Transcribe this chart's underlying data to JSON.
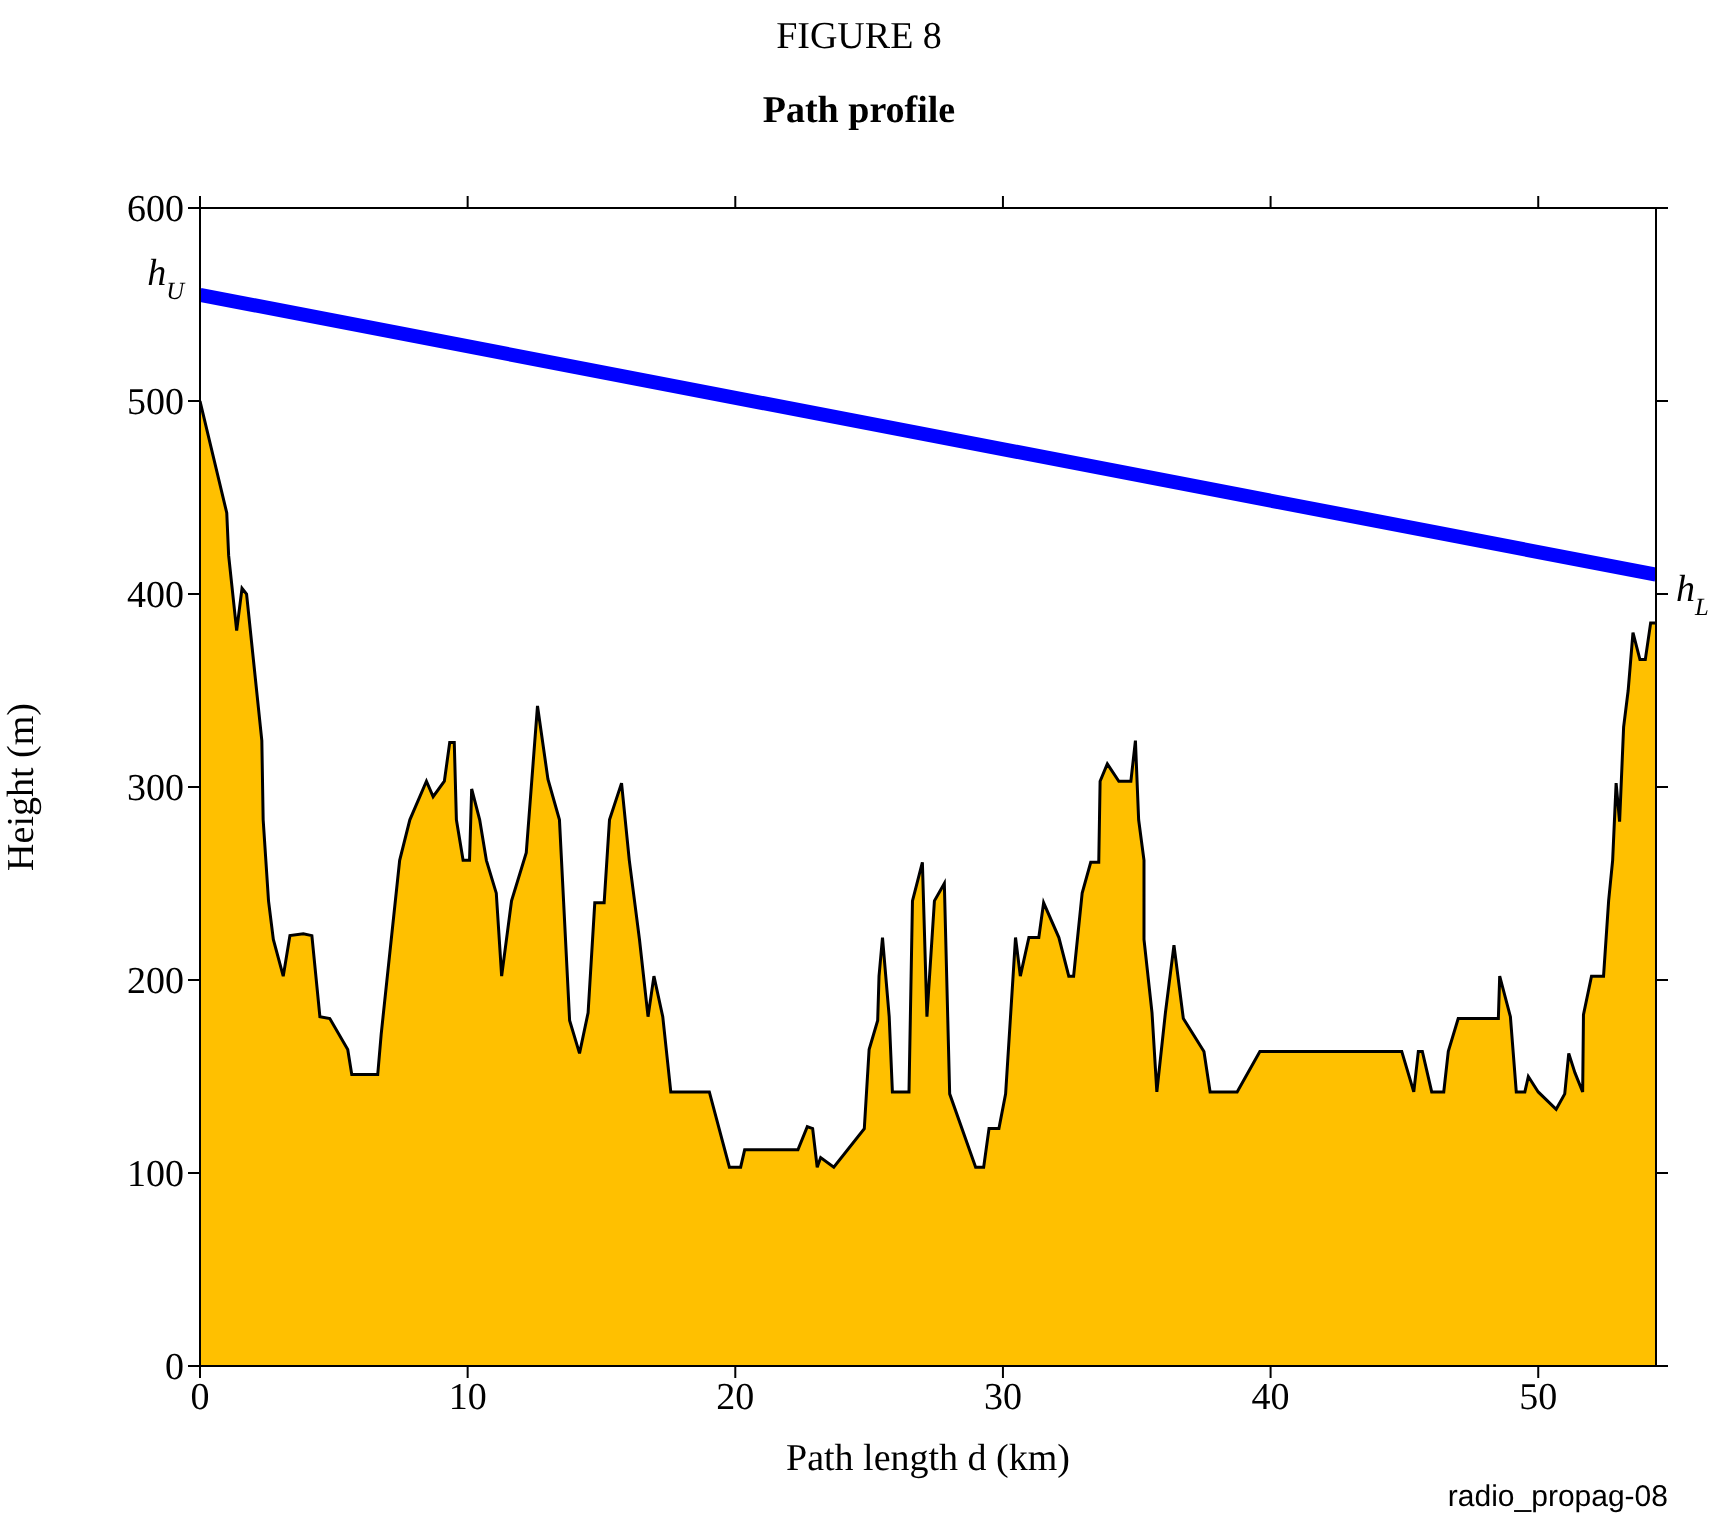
{
  "chart_data": {
    "type": "area",
    "title": "FIGURE 8",
    "subtitle": "Path profile",
    "xlabel": "Path length d (km)",
    "ylabel": "Height (m)",
    "xlim": [
      0,
      54.4
    ],
    "xticks": [
      0,
      10,
      20,
      30,
      40,
      50
    ],
    "ylim": [
      0,
      600
    ],
    "yticks": [
      0,
      100,
      200,
      300,
      400,
      500,
      600
    ],
    "annotations": [
      {
        "text": "h$_{U}$",
        "x": 0,
        "y": 555
      },
      {
        "text": "h$_{L}$",
        "x": 54.4,
        "y": 410
      },
      "radio_propag-08"
    ],
    "series": [
      {
        "color": "#ffc000",
        "x": [
          0,
          1.0,
          1.07,
          1.37,
          1.57,
          1.74,
          2.31,
          2.36,
          2.56,
          2.74,
          3.11,
          3.36,
          3.86,
          4.18,
          4.48,
          4.85,
          5.52,
          5.67,
          6.64,
          6.77,
          7.46,
          7.84,
          8.46,
          8.71,
          9.13,
          9.33,
          9.5,
          9.58,
          9.83,
          10.07,
          10.15,
          10.45,
          10.7,
          11.07,
          11.27,
          11.64,
          12.19,
          12.61,
          13.0,
          13.43,
          13.81,
          14.18,
          14.5,
          14.75,
          15.1,
          15.3,
          15.75,
          16.04,
          16.42,
          16.74,
          16.96,
          17.29,
          17.59,
          18.28,
          19.03,
          19.78,
          20.2,
          20.35,
          22.34,
          22.69,
          22.89,
          23.06,
          23.19,
          23.68,
          24.82,
          25.0,
          25.32,
          25.37,
          25.5,
          25.75,
          25.87,
          26.49,
          26.62,
          26.99,
          27.16,
          27.44,
          27.81,
          28.01,
          28.98,
          29.28,
          29.48,
          29.85,
          30.1,
          30.47,
          30.65,
          30.97,
          31.34,
          31.52,
          32.09,
          32.46,
          32.64,
          32.96,
          33.28,
          33.58,
          33.63,
          33.9,
          34.33,
          34.78,
          34.95,
          35.07,
          35.27,
          35.27,
          35.57,
          35.75,
          36.07,
          36.39,
          36.74,
          37.51,
          37.74,
          38.75,
          39.6,
          44.9,
          45.35,
          45.52,
          45.67,
          46.02,
          46.47,
          46.64,
          47.01,
          48.51,
          48.56,
          48.96,
          49.18,
          49.5,
          49.63,
          50.0,
          50.67,
          50.99,
          51.14,
          51.37,
          51.66,
          51.69,
          51.99,
          52.44,
          52.63,
          52.78,
          52.91,
          53.04,
          53.19,
          53.36,
          53.54,
          53.8,
          54.0,
          54.2,
          54.4
        ],
        "values": [
          500,
          442,
          420,
          381,
          403,
          400,
          324,
          283,
          241,
          221,
          202,
          223,
          224,
          223,
          181,
          180,
          164,
          151,
          151,
          172,
          262,
          283,
          303,
          295,
          303,
          323,
          323,
          283,
          262,
          262,
          299,
          283,
          262,
          245,
          202,
          241,
          266,
          342,
          304,
          283,
          179,
          162,
          183,
          240,
          240,
          283,
          302,
          262,
          221,
          181,
          202,
          181,
          142,
          142,
          142,
          103,
          103,
          112,
          112,
          124,
          123,
          103,
          108,
          103,
          123,
          164,
          179,
          202,
          222,
          181,
          142,
          142,
          241,
          261,
          181,
          241,
          250,
          141,
          103,
          103,
          123,
          123,
          141,
          222,
          202,
          222,
          222,
          240,
          222,
          202,
          202,
          245,
          261,
          261,
          303,
          312,
          303,
          303,
          324,
          283,
          262,
          221,
          183,
          142,
          183,
          218,
          180,
          163,
          142,
          142,
          163,
          163,
          142,
          163,
          163,
          142,
          142,
          163,
          180,
          180,
          202,
          181,
          142,
          142,
          150,
          142,
          133,
          141,
          162,
          152,
          142,
          182,
          202,
          202,
          241,
          262,
          302,
          282,
          331,
          350,
          380,
          366,
          366,
          385,
          385
        ]
      },
      {
        "type": "line",
        "color": "#0000ff",
        "x": [
          0,
          54.4
        ],
        "values": [
          555,
          410
        ]
      }
    ]
  }
}
